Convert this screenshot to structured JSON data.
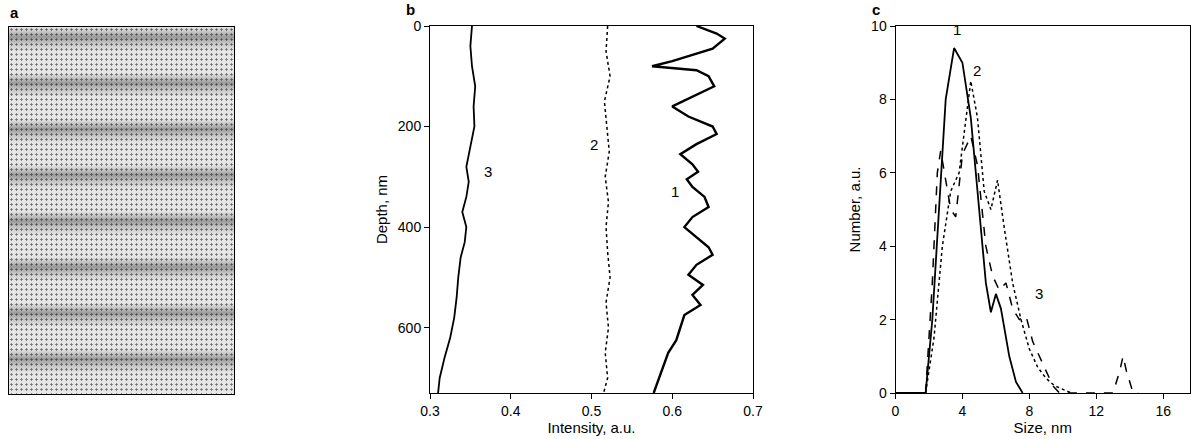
{
  "image_panel": {
    "label": "a"
  },
  "chart_data": [
    {
      "type": "line",
      "label": "b",
      "x_label": "Intensity, a.u.",
      "y_label": "Depth, nm",
      "xlim": [
        0.3,
        0.7
      ],
      "xticks": [
        0.3,
        0.4,
        0.5,
        0.6,
        0.7
      ],
      "ylim": [
        730,
        0
      ],
      "yticks": [
        0,
        200,
        400,
        600
      ],
      "series": [
        {
          "color": "#000000",
          "line_style": "solid",
          "x": [
            0.63,
            0.655,
            0.665,
            0.65,
            0.6,
            0.575,
            0.63,
            0.645,
            0.652,
            0.625,
            0.6,
            0.62,
            0.65,
            0.655,
            0.63,
            0.61,
            0.625,
            0.632,
            0.618,
            0.625,
            0.64,
            0.645,
            0.625,
            0.615,
            0.63,
            0.645,
            0.65,
            0.63,
            0.62,
            0.638,
            0.625,
            0.635,
            0.615,
            0.61,
            0.605,
            0.595,
            0.588,
            0.582,
            0.577
          ],
          "y": [
            0,
            15,
            25,
            45,
            70,
            80,
            88,
            100,
            120,
            140,
            160,
            180,
            200,
            215,
            235,
            255,
            275,
            290,
            305,
            320,
            340,
            360,
            380,
            400,
            420,
            440,
            455,
            475,
            495,
            515,
            535,
            555,
            575,
            600,
            625,
            650,
            680,
            705,
            730
          ]
        },
        {
          "color": "#000000",
          "line_style": "dot",
          "x": [
            0.52,
            0.518,
            0.523,
            0.516,
            0.519,
            0.522,
            0.517,
            0.521,
            0.518,
            0.52,
            0.523,
            0.518,
            0.521,
            0.517,
            0.52,
            0.515
          ],
          "y": [
            0,
            50,
            100,
            150,
            200,
            250,
            300,
            350,
            400,
            450,
            500,
            550,
            600,
            650,
            700,
            730
          ]
        },
        {
          "color": "#000000",
          "line_style": "solid",
          "x": [
            0.352,
            0.35,
            0.352,
            0.356,
            0.354,
            0.355,
            0.35,
            0.345,
            0.348,
            0.345,
            0.34,
            0.345,
            0.343,
            0.338,
            0.335,
            0.333,
            0.33,
            0.325,
            0.318,
            0.312,
            0.31
          ],
          "y": [
            0,
            40,
            80,
            120,
            160,
            200,
            240,
            280,
            310,
            340,
            370,
            400,
            430,
            460,
            500,
            540,
            580,
            620,
            660,
            700,
            730
          ]
        }
      ],
      "annotations": [
        {
          "text": "1",
          "x": 0.603,
          "y": 330
        },
        {
          "text": "2",
          "x": 0.503,
          "y": 235
        },
        {
          "text": "3",
          "x": 0.372,
          "y": 290
        }
      ]
    },
    {
      "type": "line",
      "label": "c",
      "x_label": "Size, nm",
      "y_label": "Number, a.u.",
      "xlim": [
        0,
        17.6
      ],
      "xticks": [
        0,
        4,
        8,
        12,
        16
      ],
      "ylim": [
        0,
        10
      ],
      "yticks": [
        0,
        2,
        4,
        6,
        8,
        10
      ],
      "series": [
        {
          "color": "#000000",
          "line_style": "solid",
          "x": [
            0,
            1.8,
            2.2,
            2.6,
            3,
            3.5,
            4,
            4.5,
            5,
            5.4,
            5.7,
            6,
            6.3,
            6.8,
            7.2,
            7.6
          ],
          "y": [
            0,
            0,
            2,
            5,
            8,
            9.4,
            9,
            7.5,
            5,
            3,
            2.2,
            2.7,
            2.3,
            1,
            0.3,
            0
          ]
        },
        {
          "color": "#000000",
          "line_style": "dot",
          "x": [
            1.8,
            2.3,
            2.8,
            3.3,
            3.8,
            4.2,
            4.5,
            4.9,
            5.3,
            5.7,
            6.1,
            6.5,
            7,
            7.5,
            8,
            8.5,
            9,
            9.5,
            10,
            10.5
          ],
          "y": [
            0,
            1.5,
            4,
            5.5,
            6,
            7.5,
            8.5,
            7.5,
            5.5,
            5,
            5.8,
            4.5,
            3,
            2,
            1.2,
            0.7,
            0.4,
            0.2,
            0.1,
            0
          ]
        },
        {
          "color": "#000000",
          "line_style": "dash",
          "x": [
            1.8,
            2.2,
            2.5,
            2.7,
            3,
            3.3,
            3.6,
            4,
            4.5,
            4.9,
            5.4,
            5.8,
            6.2,
            6.6,
            7,
            7.4,
            7.8,
            8.2,
            8.6,
            9,
            9.4,
            9.8,
            13,
            13.4,
            13.6,
            13.8,
            14.2,
            14.5
          ],
          "y": [
            0,
            3,
            6,
            6.6,
            5.8,
            5,
            4.8,
            6.5,
            7,
            6.2,
            4,
            3.2,
            2.8,
            3,
            2.3,
            2,
            2.1,
            1.4,
            1,
            0.6,
            0.2,
            0,
            0,
            0.6,
            1,
            0.6,
            0,
            0
          ]
        }
      ],
      "annotations": [
        {
          "text": "1",
          "x": 3.7,
          "y": 9.9
        },
        {
          "text": "2",
          "x": 4.9,
          "y": 8.8
        },
        {
          "text": "3",
          "x": 8.6,
          "y": 2.7
        }
      ]
    }
  ]
}
